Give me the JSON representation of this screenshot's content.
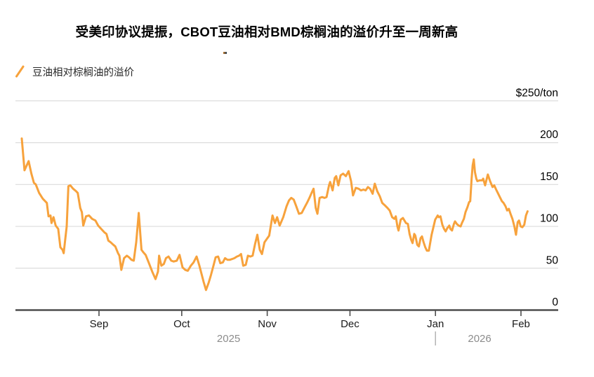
{
  "header": {
    "title": "受美印协议提振，CBOT豆油相对BMD棕榈油的溢价升至一周新高"
  },
  "legend": {
    "label": "豆油相对棕榈油的溢价"
  },
  "colors": {
    "line": "#F7A23C",
    "axis": "#4d4d4d",
    "grid": "#dcdcdc",
    "tick_label": "#1a1a1a",
    "value_label": "#000000",
    "year_label": "#8c8c8c",
    "divider": "#b3b3b3"
  },
  "chart_data": {
    "type": "line",
    "title": "受美印协议提振，CBOT豆油相对BMD棕榈油的溢价升至一周新高",
    "legend_position": "top-left",
    "grid": "horizontal",
    "ylabel": "$/ton",
    "y_axis": {
      "min": 0,
      "max": 250,
      "step": 50,
      "ticks": [
        {
          "v": 0,
          "label": "0"
        },
        {
          "v": 50,
          "label": "50"
        },
        {
          "v": 100,
          "label": "100"
        },
        {
          "v": 150,
          "label": "150"
        },
        {
          "v": 200,
          "label": "200"
        },
        {
          "v": 250,
          "label": "$250/ton"
        }
      ]
    },
    "x_axis": {
      "unit": "days since 2025-08-04",
      "ticks": [
        {
          "t": 28,
          "label": "Sep"
        },
        {
          "t": 58,
          "label": "Oct"
        },
        {
          "t": 89,
          "label": "Nov"
        },
        {
          "t": 119,
          "label": "Dec"
        },
        {
          "t": 150,
          "label": "Jan"
        },
        {
          "t": 181,
          "label": "Feb"
        }
      ],
      "year_labels": [
        {
          "t": 75,
          "label": "2025"
        },
        {
          "t": 166,
          "label": "2026"
        }
      ],
      "year_divider_t": 150
    },
    "series": [
      {
        "name": "豆油相对棕榈油的溢价",
        "color": "#F7A23C",
        "points": [
          [
            0,
            205
          ],
          [
            1,
            167
          ],
          [
            2.5,
            178
          ],
          [
            3.5,
            163
          ],
          [
            4.4,
            152
          ],
          [
            5.1,
            150
          ],
          [
            6.3,
            140
          ],
          [
            7.6,
            133
          ],
          [
            9.1,
            128
          ],
          [
            9.7,
            112
          ],
          [
            10.4,
            113
          ],
          [
            10.8,
            104
          ],
          [
            11.5,
            111
          ],
          [
            12.3,
            101
          ],
          [
            13.2,
            97
          ],
          [
            14,
            75
          ],
          [
            14.8,
            72
          ],
          [
            15.2,
            68
          ],
          [
            16.3,
            100
          ],
          [
            16.9,
            148
          ],
          [
            17.6,
            149
          ],
          [
            18.6,
            145
          ],
          [
            19.7,
            142
          ],
          [
            20.3,
            140
          ],
          [
            21.2,
            122
          ],
          [
            21.8,
            117
          ],
          [
            22.3,
            101
          ],
          [
            23.3,
            112
          ],
          [
            24.4,
            113
          ],
          [
            25.5,
            109
          ],
          [
            26.7,
            107
          ],
          [
            27.7,
            101
          ],
          [
            28.8,
            97
          ],
          [
            29.9,
            93
          ],
          [
            30.7,
            91
          ],
          [
            31.4,
            83
          ],
          [
            32.2,
            81
          ],
          [
            33.2,
            78
          ],
          [
            33.9,
            76
          ],
          [
            34.9,
            68
          ],
          [
            35.4,
            65
          ],
          [
            36.1,
            48
          ],
          [
            37.1,
            62
          ],
          [
            38.1,
            65
          ],
          [
            38.9,
            63
          ],
          [
            39.8,
            60
          ],
          [
            40.6,
            59
          ],
          [
            41.5,
            81
          ],
          [
            42.4,
            116
          ],
          [
            43.4,
            72
          ],
          [
            44.1,
            69
          ],
          [
            44.9,
            66
          ],
          [
            46,
            57
          ],
          [
            47.3,
            46
          ],
          [
            48.5,
            37
          ],
          [
            49.4,
            46
          ],
          [
            49.8,
            65
          ],
          [
            50.6,
            53
          ],
          [
            51.5,
            55
          ],
          [
            52.3,
            62
          ],
          [
            53.2,
            64
          ],
          [
            54.2,
            59
          ],
          [
            55.1,
            58
          ],
          [
            56.2,
            59
          ],
          [
            57.2,
            66
          ],
          [
            58.3,
            51
          ],
          [
            59.3,
            48
          ],
          [
            60.2,
            47
          ],
          [
            61.3,
            53
          ],
          [
            62.3,
            57
          ],
          [
            63.4,
            64
          ],
          [
            64.4,
            53
          ],
          [
            65.2,
            43
          ],
          [
            65.9,
            34
          ],
          [
            66.8,
            24
          ],
          [
            67.8,
            33
          ],
          [
            68.6,
            42
          ],
          [
            69.5,
            53
          ],
          [
            70.3,
            63
          ],
          [
            71.2,
            64
          ],
          [
            72,
            56
          ],
          [
            72.9,
            57
          ],
          [
            73.7,
            62
          ],
          [
            74.6,
            60
          ],
          [
            75.4,
            60
          ],
          [
            76.3,
            61
          ],
          [
            77.1,
            62
          ],
          [
            78,
            64
          ],
          [
            78.8,
            65
          ],
          [
            79.5,
            67
          ],
          [
            80.3,
            53
          ],
          [
            81.2,
            54
          ],
          [
            82,
            65
          ],
          [
            82.9,
            64
          ],
          [
            83.7,
            65
          ],
          [
            84.6,
            79
          ],
          [
            85.4,
            90
          ],
          [
            86.3,
            72
          ],
          [
            87.1,
            67
          ],
          [
            88,
            81
          ],
          [
            89.7,
            89
          ],
          [
            90.9,
            113
          ],
          [
            91.8,
            104
          ],
          [
            92.6,
            111
          ],
          [
            93.5,
            101
          ],
          [
            94.8,
            111
          ],
          [
            96,
            124
          ],
          [
            96.9,
            131
          ],
          [
            97.7,
            134
          ],
          [
            98.6,
            132
          ],
          [
            99.4,
            125
          ],
          [
            100.5,
            115
          ],
          [
            101.5,
            116
          ],
          [
            102.6,
            123
          ],
          [
            103.4,
            128
          ],
          [
            104.3,
            134
          ],
          [
            105.1,
            140
          ],
          [
            105.8,
            145
          ],
          [
            106.6,
            122
          ],
          [
            107.2,
            115
          ],
          [
            108,
            134
          ],
          [
            108.9,
            135
          ],
          [
            109.8,
            134
          ],
          [
            110.5,
            135
          ],
          [
            111.4,
            149
          ],
          [
            111.8,
            153
          ],
          [
            112.7,
            143
          ],
          [
            113.5,
            158
          ],
          [
            114,
            160
          ],
          [
            114.8,
            149
          ],
          [
            115.6,
            161
          ],
          [
            116.5,
            163
          ],
          [
            117.5,
            160
          ],
          [
            118.5,
            166
          ],
          [
            119.4,
            154
          ],
          [
            120.1,
            137
          ],
          [
            121.1,
            146
          ],
          [
            122.1,
            145
          ],
          [
            123,
            143
          ],
          [
            123.9,
            144
          ],
          [
            124.7,
            143
          ],
          [
            125.5,
            147
          ],
          [
            126.3,
            145
          ],
          [
            127.2,
            139
          ],
          [
            128,
            151
          ],
          [
            128.9,
            142
          ],
          [
            129.8,
            136
          ],
          [
            130.7,
            128
          ],
          [
            131.7,
            125
          ],
          [
            132.6,
            122
          ],
          [
            133.4,
            119
          ],
          [
            134.3,
            111
          ],
          [
            135.1,
            109
          ],
          [
            135.6,
            112
          ],
          [
            136.2,
            100
          ],
          [
            136.6,
            95
          ],
          [
            137.4,
            108
          ],
          [
            138.2,
            110
          ],
          [
            139.3,
            104
          ],
          [
            140,
            103
          ],
          [
            140.6,
            91
          ],
          [
            141.2,
            84
          ],
          [
            141.7,
            80
          ],
          [
            142.3,
            91
          ],
          [
            142.7,
            89
          ],
          [
            143.4,
            78
          ],
          [
            144,
            76
          ],
          [
            144.6,
            86
          ],
          [
            145.1,
            88
          ],
          [
            145.7,
            81
          ],
          [
            146.3,
            75
          ],
          [
            146.9,
            71
          ],
          [
            147.6,
            71
          ],
          [
            148.6,
            90
          ],
          [
            149.1,
            97
          ],
          [
            149.9,
            108
          ],
          [
            150.8,
            113
          ],
          [
            151.2,
            111
          ],
          [
            151.8,
            112
          ],
          [
            152.5,
            102
          ],
          [
            153.1,
            97
          ],
          [
            153.7,
            94
          ],
          [
            154.3,
            98
          ],
          [
            155,
            101
          ],
          [
            155.4,
            97
          ],
          [
            156,
            95
          ],
          [
            156.7,
            103
          ],
          [
            157.1,
            106
          ],
          [
            157.7,
            103
          ],
          [
            158.4,
            101
          ],
          [
            159.1,
            100
          ],
          [
            159.6,
            104
          ],
          [
            160.3,
            109
          ],
          [
            160.9,
            117
          ],
          [
            161.6,
            123
          ],
          [
            162.2,
            129
          ],
          [
            162.6,
            130
          ],
          [
            163.1,
            157
          ],
          [
            163.5,
            173
          ],
          [
            163.9,
            180
          ],
          [
            164.3,
            165
          ],
          [
            164.8,
            157
          ],
          [
            165.2,
            154
          ],
          [
            166,
            155
          ],
          [
            166.9,
            155
          ],
          [
            167.3,
            157
          ],
          [
            168,
            149
          ],
          [
            169,
            162
          ],
          [
            169.8,
            154
          ],
          [
            170.7,
            147
          ],
          [
            171.3,
            149
          ],
          [
            172,
            144
          ],
          [
            172.6,
            140
          ],
          [
            173.5,
            134
          ],
          [
            174.1,
            130
          ],
          [
            174.7,
            128
          ],
          [
            175.4,
            124
          ],
          [
            176,
            119
          ],
          [
            176.6,
            121
          ],
          [
            177.2,
            115
          ],
          [
            177.9,
            109
          ],
          [
            178.6,
            100
          ],
          [
            179.2,
            90
          ],
          [
            179.8,
            105
          ],
          [
            180.3,
            107
          ],
          [
            180.9,
            100
          ],
          [
            181.5,
            99
          ],
          [
            182.2,
            102
          ],
          [
            182.8,
            113
          ],
          [
            183.4,
            118
          ]
        ]
      }
    ]
  }
}
